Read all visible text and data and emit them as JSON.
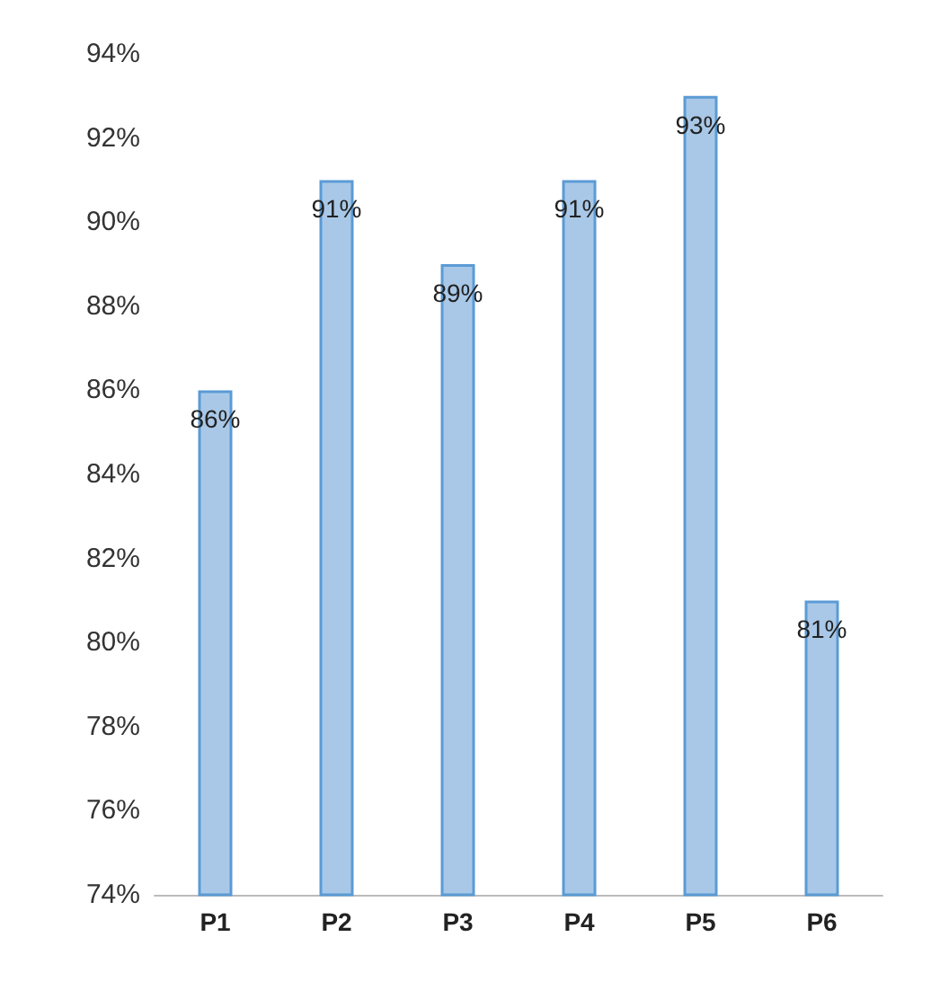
{
  "chart_data": {
    "type": "bar",
    "categories": [
      "P1",
      "P2",
      "P3",
      "P4",
      "P5",
      "P6"
    ],
    "values": [
      86,
      91,
      89,
      91,
      93,
      81
    ],
    "color": "#a9c8e8",
    "value_labels": [
      "86%",
      "91%",
      "89%",
      "91%",
      "93%",
      "81%"
    ],
    "ylim": [
      74,
      94
    ],
    "yticks": [
      {
        "value": 74,
        "label": "74%"
      },
      {
        "value": 76,
        "label": "76%"
      },
      {
        "value": 78,
        "label": "78%"
      },
      {
        "value": 80,
        "label": "80%"
      },
      {
        "value": 82,
        "label": "82%"
      },
      {
        "value": 84,
        "label": "84%"
      },
      {
        "value": 86,
        "label": "86%"
      },
      {
        "value": 88,
        "label": "88%"
      },
      {
        "value": 90,
        "label": "90%"
      },
      {
        "value": 92,
        "label": "92%"
      },
      {
        "value": 94,
        "label": "94%"
      }
    ],
    "grid": false
  }
}
